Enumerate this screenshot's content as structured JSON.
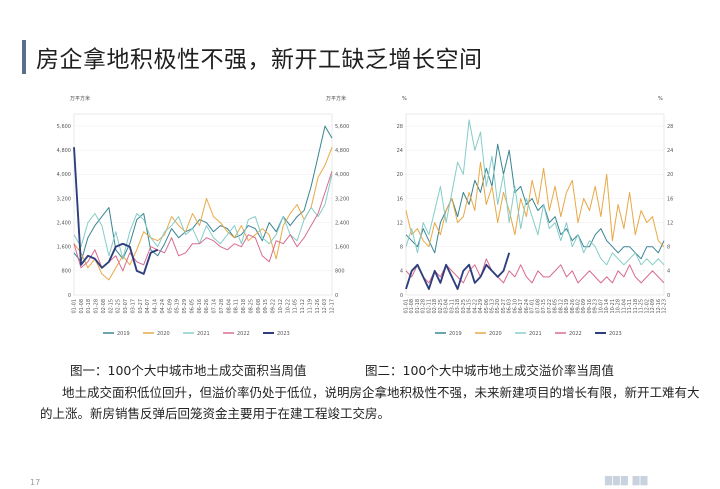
{
  "page": {
    "title": "房企拿地积极性不强，新开工缺乏增长空间",
    "caption1": "图一：100个大中城市地土成交面积当周值",
    "caption2": "图二：100个大中城市地土成交溢价率当周值",
    "body": "地土成交面积低位回升，但溢价率仍处于低位，说明房企拿地积极性不强，未来新建项目的增长有限，新开工难有大的上涨。新房销售反弹后回笼资金主要用于在建工程竣工交房。",
    "footer_num": "17"
  },
  "chart_data": [
    {
      "type": "line",
      "unit_left": "万平方米",
      "unit_right": "万平方米",
      "ylim": [
        0,
        6000
      ],
      "yticks": [
        "0",
        "800",
        "1,600",
        "2,400",
        "3,200",
        "4,000",
        "4,800",
        "5,600"
      ],
      "yticks_right": [
        "0",
        "800",
        "1,600",
        "2,400",
        "3,200",
        "4,000",
        "4,800",
        "5,600"
      ],
      "xticks": [
        "01-01",
        "01-08",
        "01-18",
        "01-28",
        "02-08",
        "02-15",
        "02-25",
        "03-07",
        "03-17",
        "03-27",
        "04-07",
        "04-14",
        "04-24",
        "05-09",
        "05-19",
        "05-29",
        "06-05",
        "06-16",
        "06-26",
        "07-14",
        "07-28",
        "08-04",
        "08-11",
        "08-18",
        "08-25",
        "09-08",
        "09-15",
        "09-22",
        "10-12",
        "10-22",
        "11-05",
        "11-12",
        "11-19",
        "11-26",
        "12-03",
        "12-17"
      ],
      "legend_position": "bottom",
      "series": [
        {
          "name": "2019",
          "color": "#2e7d8c",
          "values": [
            1400,
            1100,
            1900,
            2300,
            2600,
            2900,
            1500,
            1200,
            1700,
            2500,
            2700,
            1500,
            1300,
            1700,
            2200,
            1900,
            2100,
            2200,
            2500,
            2400,
            2100,
            2300,
            2200,
            1900,
            2000,
            2300,
            2200,
            1800,
            2400,
            2100,
            2600,
            2300,
            2600,
            2800,
            3600,
            4600,
            5600,
            5200
          ]
        },
        {
          "name": "2020",
          "color": "#e8a33c",
          "values": [
            1700,
            1400,
            900,
            1200,
            700,
            500,
            900,
            1300,
            1000,
            1500,
            2100,
            1900,
            1800,
            2000,
            2600,
            2300,
            2100,
            2700,
            2300,
            3200,
            2600,
            2400,
            2100,
            1900,
            2300,
            1800,
            2000,
            2200,
            2000,
            1200,
            2300,
            2700,
            3000,
            2500,
            2900,
            3900,
            4300,
            4900
          ]
        },
        {
          "name": "2021",
          "color": "#7ec9c4",
          "values": [
            2000,
            1600,
            2400,
            2700,
            2300,
            1300,
            2100,
            1200,
            2100,
            2700,
            2500,
            1900,
            1600,
            2100,
            2300,
            2600,
            2000,
            2200,
            1700,
            2300,
            1900,
            1700,
            2000,
            2300,
            1700,
            2500,
            2600,
            1900,
            1700,
            2000,
            2600,
            2000,
            1800,
            2500,
            2900,
            2600,
            3000,
            4000
          ]
        },
        {
          "name": "2022",
          "color": "#d6638a",
          "values": [
            1700,
            900,
            1100,
            1500,
            900,
            1100,
            1300,
            800,
            1400,
            1100,
            1000,
            1600,
            1500,
            1400,
            1900,
            1300,
            1400,
            1700,
            1700,
            1900,
            1800,
            1600,
            1500,
            1700,
            1600,
            2000,
            1900,
            1300,
            1100,
            1800,
            1700,
            2000,
            1600,
            1900,
            2300,
            2700,
            3400,
            4100
          ]
        },
        {
          "name": "2023",
          "color": "#2f3f7d",
          "values": [
            4900,
            1000,
            1300,
            1200,
            900,
            1100,
            1600,
            1700,
            1600,
            800,
            700,
            1400,
            1500
          ]
        }
      ]
    },
    {
      "type": "line",
      "unit_left": "%",
      "unit_right": "%",
      "ylim": [
        0,
        30
      ],
      "yticks": [
        "0",
        "4",
        "8",
        "12",
        "16",
        "20",
        "24",
        "28"
      ],
      "yticks_right": [
        "0",
        "4",
        "8",
        "12",
        "16",
        "20",
        "24",
        "28"
      ],
      "xticks": [
        "01-01",
        "01-08",
        "01-18",
        "01-28",
        "02-11",
        "02-18",
        "02-25",
        "03-04",
        "03-11",
        "03-18",
        "03-25",
        "04-15",
        "04-22",
        "04-29",
        "05-06",
        "05-13",
        "05-20",
        "05-27",
        "06-03",
        "06-10",
        "06-17",
        "06-24",
        "07-01",
        "07-08",
        "07-15",
        "07-22",
        "08-05",
        "08-12",
        "08-19",
        "08-26",
        "09-02",
        "09-09",
        "09-16",
        "09-23",
        "10-07",
        "10-14",
        "10-21",
        "10-28",
        "11-04",
        "11-11",
        "11-18",
        "11-25",
        "12-02",
        "12-09",
        "12-16",
        "12-23"
      ],
      "legend_position": "bottom",
      "series": [
        {
          "name": "2019",
          "color": "#2e7d8c",
          "values": [
            10,
            9,
            8,
            11,
            9,
            7,
            12,
            14,
            16,
            13,
            17,
            15,
            19,
            17,
            21,
            18,
            25,
            20,
            24,
            17,
            18,
            15,
            16,
            14,
            15,
            12,
            13,
            10,
            11,
            9,
            10,
            8,
            8,
            10,
            11,
            9,
            8,
            7,
            8,
            8,
            7,
            6,
            8,
            8,
            7,
            9
          ]
        },
        {
          "name": "2020",
          "color": "#e8a33c",
          "values": [
            14,
            10,
            11,
            9,
            8,
            12,
            10,
            14,
            16,
            12,
            13,
            17,
            14,
            22,
            15,
            18,
            12,
            17,
            14,
            10,
            16,
            13,
            19,
            15,
            21,
            14,
            18,
            13,
            17,
            19,
            12,
            16,
            14,
            18,
            13,
            20,
            9,
            15,
            11,
            17,
            10,
            14,
            12,
            13,
            9,
            8
          ]
        },
        {
          "name": "2021",
          "color": "#7ec9c4",
          "values": [
            8,
            11,
            7,
            12,
            10,
            14,
            18,
            12,
            17,
            22,
            20,
            29,
            24,
            27,
            18,
            23,
            15,
            20,
            12,
            18,
            11,
            16,
            13,
            10,
            15,
            11,
            12,
            9,
            12,
            8,
            10,
            7,
            9,
            8,
            6,
            5,
            7,
            6,
            5,
            6,
            7,
            5,
            6,
            5,
            6,
            5
          ]
        },
        {
          "name": "2022",
          "color": "#d6638a",
          "values": [
            4,
            3,
            5,
            3,
            2,
            4,
            3,
            5,
            4,
            3,
            2,
            4,
            5,
            3,
            6,
            4,
            3,
            2,
            4,
            3,
            5,
            3,
            2,
            4,
            3,
            3,
            4,
            5,
            3,
            4,
            2,
            3,
            4,
            3,
            2,
            3,
            2,
            4,
            3,
            5,
            3,
            2,
            3,
            4,
            3,
            2
          ]
        },
        {
          "name": "2023",
          "color": "#2f3f7d",
          "values": [
            1,
            4,
            5,
            3,
            1,
            4,
            2,
            5,
            3,
            1,
            4,
            5,
            2,
            3,
            5,
            4,
            3,
            4,
            7
          ]
        }
      ]
    }
  ]
}
